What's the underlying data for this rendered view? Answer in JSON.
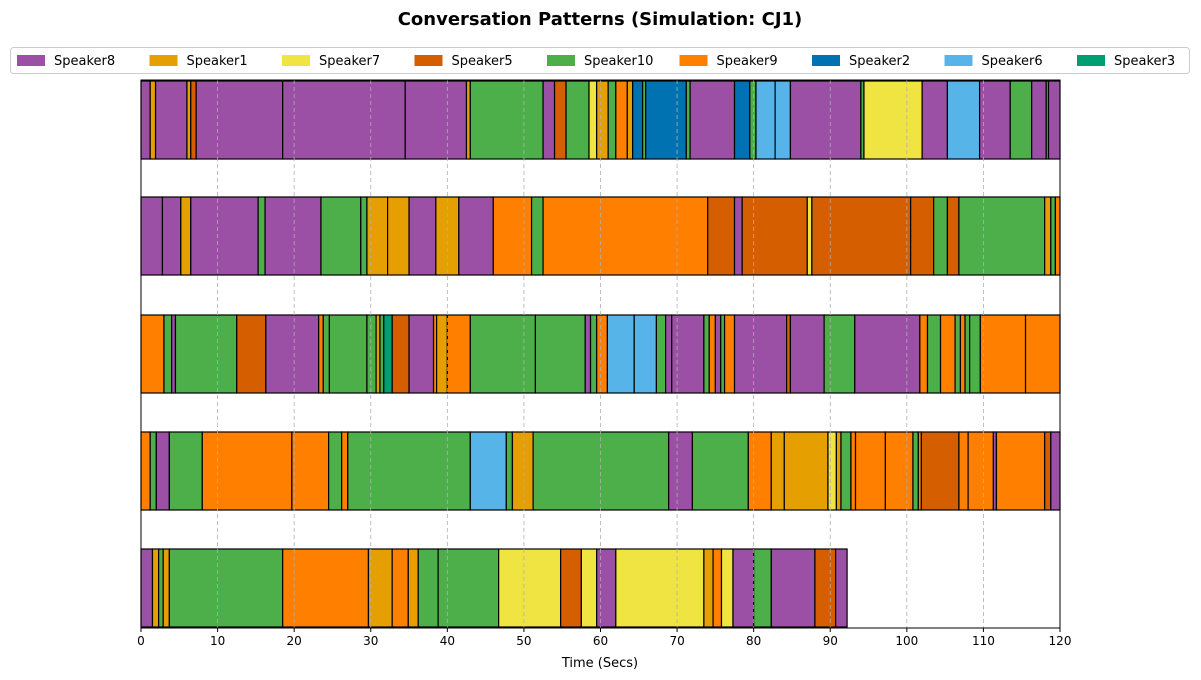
{
  "chart_data": {
    "type": "broken-bar-timeline",
    "title": "Conversation Patterns (Simulation: CJ1)",
    "xlabel": "Time (Secs)",
    "xlim": [
      0,
      120
    ],
    "xticks": [
      0,
      10,
      20,
      30,
      40,
      50,
      60,
      70,
      80,
      90,
      100,
      110,
      120
    ],
    "grid": "vertical dashed",
    "legend_position": "top",
    "speakers": [
      {
        "name": "Speaker8",
        "color": "#9b4fa5"
      },
      {
        "name": "Speaker1",
        "color": "#e69f00"
      },
      {
        "name": "Speaker7",
        "color": "#f0e442"
      },
      {
        "name": "Speaker5",
        "color": "#d55e00"
      },
      {
        "name": "Speaker10",
        "color": "#4daf4a"
      },
      {
        "name": "Speaker9",
        "color": "#ff7f00"
      },
      {
        "name": "Speaker2",
        "color": "#0072b2"
      },
      {
        "name": "Speaker6",
        "color": "#56b4e9"
      },
      {
        "name": "Speaker3",
        "color": "#009e73"
      }
    ],
    "rows": [
      [
        [
          0,
          1.2,
          "Speaker8"
        ],
        [
          1.2,
          1.9,
          "Speaker1"
        ],
        [
          1.9,
          6.0,
          "Speaker8"
        ],
        [
          6.0,
          6.5,
          "Speaker1"
        ],
        [
          6.5,
          7.2,
          "Speaker5"
        ],
        [
          7.2,
          18.5,
          "Speaker8"
        ],
        [
          18.5,
          34.5,
          "Speaker8"
        ],
        [
          34.5,
          42.5,
          "Speaker8"
        ],
        [
          42.5,
          43.0,
          "Speaker1"
        ],
        [
          43.0,
          52.5,
          "Speaker10"
        ],
        [
          52.5,
          54.0,
          "Speaker8"
        ],
        [
          54.0,
          55.5,
          "Speaker5"
        ],
        [
          55.5,
          58.5,
          "Speaker10"
        ],
        [
          58.5,
          59.5,
          "Speaker7"
        ],
        [
          59.5,
          61.0,
          "Speaker1"
        ],
        [
          61.0,
          62.0,
          "Speaker10"
        ],
        [
          62.0,
          63.5,
          "Speaker9"
        ],
        [
          63.5,
          64.2,
          "Speaker1"
        ],
        [
          64.2,
          65.5,
          "Speaker2"
        ],
        [
          65.5,
          65.9,
          "Speaker10"
        ],
        [
          65.9,
          71.2,
          "Speaker2"
        ],
        [
          71.2,
          71.7,
          "Speaker10"
        ],
        [
          71.7,
          77.5,
          "Speaker8"
        ],
        [
          77.5,
          79.5,
          "Speaker2"
        ],
        [
          79.5,
          80.3,
          "Speaker10"
        ],
        [
          80.3,
          82.8,
          "Speaker6"
        ],
        [
          82.8,
          84.8,
          "Speaker6"
        ],
        [
          84.8,
          94.0,
          "Speaker8"
        ],
        [
          94.0,
          94.4,
          "Speaker10"
        ],
        [
          94.4,
          102.0,
          "Speaker7"
        ],
        [
          102.0,
          105.3,
          "Speaker8"
        ],
        [
          105.3,
          109.5,
          "Speaker6"
        ],
        [
          109.5,
          113.5,
          "Speaker8"
        ],
        [
          113.5,
          116.3,
          "Speaker10"
        ],
        [
          116.3,
          118.2,
          "Speaker8"
        ],
        [
          118.2,
          118.5,
          "Speaker10"
        ],
        [
          118.5,
          120,
          "Speaker8"
        ]
      ],
      [
        [
          0,
          2.8,
          "Speaker8"
        ],
        [
          2.8,
          5.2,
          "Speaker8"
        ],
        [
          5.2,
          6.5,
          "Speaker1"
        ],
        [
          6.5,
          15.3,
          "Speaker8"
        ],
        [
          15.3,
          16.2,
          "Speaker10"
        ],
        [
          16.2,
          23.5,
          "Speaker8"
        ],
        [
          23.5,
          28.7,
          "Speaker10"
        ],
        [
          28.7,
          29.5,
          "Speaker10"
        ],
        [
          29.5,
          32.2,
          "Speaker1"
        ],
        [
          32.2,
          35.0,
          "Speaker1"
        ],
        [
          35.0,
          38.5,
          "Speaker8"
        ],
        [
          38.5,
          41.5,
          "Speaker1"
        ],
        [
          41.5,
          46.0,
          "Speaker8"
        ],
        [
          46.0,
          51.0,
          "Speaker9"
        ],
        [
          51.0,
          52.5,
          "Speaker10"
        ],
        [
          52.5,
          74.0,
          "Speaker9"
        ],
        [
          74.0,
          77.5,
          "Speaker5"
        ],
        [
          77.5,
          78.5,
          "Speaker8"
        ],
        [
          78.5,
          87.0,
          "Speaker5"
        ],
        [
          87.0,
          87.6,
          "Speaker7"
        ],
        [
          87.6,
          100.5,
          "Speaker5"
        ],
        [
          100.5,
          103.5,
          "Speaker5"
        ],
        [
          103.5,
          105.3,
          "Speaker10"
        ],
        [
          105.3,
          106.8,
          "Speaker5"
        ],
        [
          106.8,
          118.0,
          "Speaker10"
        ],
        [
          118.0,
          118.8,
          "Speaker1"
        ],
        [
          118.8,
          119.4,
          "Speaker10"
        ],
        [
          119.4,
          120,
          "Speaker9"
        ]
      ],
      [
        [
          0,
          3.0,
          "Speaker9"
        ],
        [
          3.0,
          4.0,
          "Speaker10"
        ],
        [
          4.0,
          4.5,
          "Speaker8"
        ],
        [
          4.5,
          12.5,
          "Speaker10"
        ],
        [
          12.5,
          16.3,
          "Speaker5"
        ],
        [
          16.3,
          23.2,
          "Speaker8"
        ],
        [
          23.2,
          23.8,
          "Speaker9"
        ],
        [
          23.8,
          24.6,
          "Speaker10"
        ],
        [
          24.6,
          29.5,
          "Speaker10"
        ],
        [
          29.5,
          30.7,
          "Speaker10"
        ],
        [
          30.7,
          31.2,
          "Speaker1"
        ],
        [
          31.2,
          31.7,
          "Speaker10"
        ],
        [
          31.7,
          32.8,
          "Speaker3"
        ],
        [
          32.8,
          35.0,
          "Speaker5"
        ],
        [
          35.0,
          38.2,
          "Speaker8"
        ],
        [
          38.2,
          38.6,
          "Speaker9"
        ],
        [
          38.6,
          40.0,
          "Speaker1"
        ],
        [
          40.0,
          43.0,
          "Speaker9"
        ],
        [
          43.0,
          51.5,
          "Speaker10"
        ],
        [
          51.5,
          58.0,
          "Speaker10"
        ],
        [
          58.0,
          58.7,
          "Speaker8"
        ],
        [
          58.7,
          59.5,
          "Speaker10"
        ],
        [
          59.5,
          60.9,
          "Speaker9"
        ],
        [
          60.9,
          64.4,
          "Speaker6"
        ],
        [
          64.4,
          67.3,
          "Speaker6"
        ],
        [
          67.3,
          68.5,
          "Speaker10"
        ],
        [
          68.5,
          69.3,
          "Speaker8"
        ],
        [
          69.3,
          73.5,
          "Speaker8"
        ],
        [
          73.5,
          74.2,
          "Speaker10"
        ],
        [
          74.2,
          75.0,
          "Speaker9"
        ],
        [
          75.0,
          75.7,
          "Speaker8"
        ],
        [
          75.7,
          76.2,
          "Speaker10"
        ],
        [
          76.2,
          77.5,
          "Speaker9"
        ],
        [
          77.5,
          84.3,
          "Speaker8"
        ],
        [
          84.3,
          84.8,
          "Speaker5"
        ],
        [
          84.8,
          89.2,
          "Speaker8"
        ],
        [
          89.2,
          93.2,
          "Speaker10"
        ],
        [
          93.2,
          101.7,
          "Speaker8"
        ],
        [
          101.7,
          102.7,
          "Speaker9"
        ],
        [
          102.7,
          104.4,
          "Speaker10"
        ],
        [
          104.4,
          106.3,
          "Speaker9"
        ],
        [
          106.3,
          107.0,
          "Speaker10"
        ],
        [
          107.0,
          107.6,
          "Speaker9"
        ],
        [
          107.6,
          108.2,
          "Speaker10"
        ],
        [
          108.2,
          109.6,
          "Speaker10"
        ],
        [
          109.6,
          115.5,
          "Speaker9"
        ],
        [
          115.5,
          120,
          "Speaker9"
        ]
      ],
      [
        [
          0,
          1.2,
          "Speaker9"
        ],
        [
          1.2,
          2.0,
          "Speaker10"
        ],
        [
          2.0,
          3.7,
          "Speaker8"
        ],
        [
          3.7,
          8.0,
          "Speaker10"
        ],
        [
          8.0,
          19.7,
          "Speaker9"
        ],
        [
          19.7,
          24.5,
          "Speaker9"
        ],
        [
          24.5,
          26.2,
          "Speaker10"
        ],
        [
          26.2,
          27.0,
          "Speaker9"
        ],
        [
          27.0,
          43.0,
          "Speaker10"
        ],
        [
          43.0,
          47.7,
          "Speaker6"
        ],
        [
          47.7,
          48.5,
          "Speaker10"
        ],
        [
          48.5,
          51.2,
          "Speaker1"
        ],
        [
          51.2,
          68.9,
          "Speaker10"
        ],
        [
          68.9,
          72.0,
          "Speaker8"
        ],
        [
          72.0,
          79.3,
          "Speaker10"
        ],
        [
          79.3,
          82.3,
          "Speaker9"
        ],
        [
          82.3,
          84.0,
          "Speaker1"
        ],
        [
          84.0,
          89.7,
          "Speaker1"
        ],
        [
          89.7,
          90.8,
          "Speaker7"
        ],
        [
          90.8,
          91.4,
          "Speaker1"
        ],
        [
          91.4,
          92.7,
          "Speaker10"
        ],
        [
          92.7,
          93.3,
          "Speaker9"
        ],
        [
          93.3,
          97.2,
          "Speaker9"
        ],
        [
          97.2,
          100.8,
          "Speaker9"
        ],
        [
          100.8,
          101.5,
          "Speaker10"
        ],
        [
          101.5,
          101.9,
          "Speaker9"
        ],
        [
          101.9,
          106.8,
          "Speaker5"
        ],
        [
          106.8,
          108.0,
          "Speaker9"
        ],
        [
          108.0,
          111.3,
          "Speaker9"
        ],
        [
          111.3,
          111.7,
          "Speaker8"
        ],
        [
          111.7,
          118.0,
          "Speaker9"
        ],
        [
          118.0,
          118.8,
          "Speaker5"
        ],
        [
          118.8,
          120,
          "Speaker8"
        ]
      ],
      [
        [
          0,
          1.5,
          "Speaker8"
        ],
        [
          1.5,
          2.3,
          "Speaker1"
        ],
        [
          2.3,
          2.9,
          "Speaker10"
        ],
        [
          2.9,
          3.7,
          "Speaker1"
        ],
        [
          3.7,
          18.5,
          "Speaker10"
        ],
        [
          18.5,
          29.7,
          "Speaker9"
        ],
        [
          29.7,
          32.8,
          "Speaker1"
        ],
        [
          32.8,
          34.9,
          "Speaker9"
        ],
        [
          34.9,
          36.2,
          "Speaker1"
        ],
        [
          36.2,
          38.8,
          "Speaker10"
        ],
        [
          38.8,
          46.7,
          "Speaker10"
        ],
        [
          46.7,
          54.8,
          "Speaker7"
        ],
        [
          54.8,
          57.5,
          "Speaker5"
        ],
        [
          57.5,
          59.5,
          "Speaker7"
        ],
        [
          59.5,
          62.0,
          "Speaker8"
        ],
        [
          62.0,
          73.5,
          "Speaker7"
        ],
        [
          73.5,
          74.7,
          "Speaker1"
        ],
        [
          74.7,
          75.8,
          "Speaker9"
        ],
        [
          75.8,
          77.3,
          "Speaker7"
        ],
        [
          77.3,
          80.0,
          "Speaker8"
        ],
        [
          80.0,
          82.3,
          "Speaker10"
        ],
        [
          82.3,
          88.0,
          "Speaker8"
        ],
        [
          88.0,
          90.7,
          "Speaker5"
        ],
        [
          90.7,
          92.2,
          "Speaker8"
        ]
      ]
    ]
  }
}
